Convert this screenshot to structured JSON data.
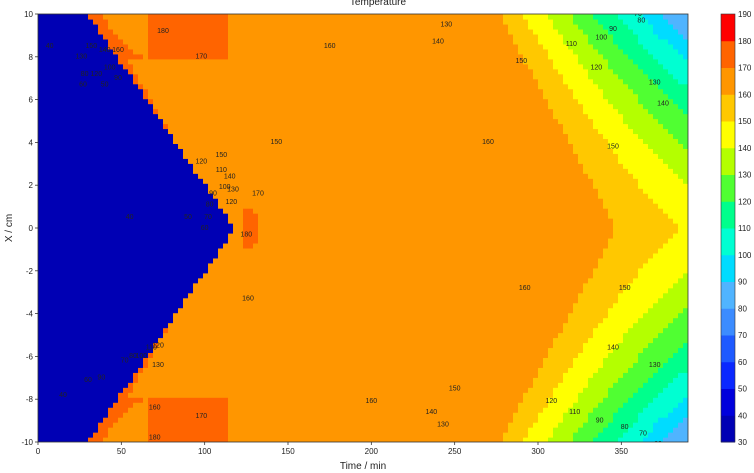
{
  "chart_data": {
    "type": "contour",
    "title": "Temperature",
    "xlabel": "Time / min",
    "ylabel": "X / cm",
    "xlim": [
      0,
      390
    ],
    "ylim": [
      -10,
      10
    ],
    "x_ticks": [
      0,
      50,
      100,
      150,
      200,
      250,
      300,
      350
    ],
    "y_ticks": [
      -10,
      -8,
      -6,
      -4,
      -2,
      0,
      2,
      4,
      6,
      8,
      10
    ],
    "colorbar": {
      "levels": [
        30,
        40,
        50,
        60,
        70,
        80,
        90,
        100,
        110,
        120,
        130,
        140,
        150,
        160,
        170,
        180,
        190
      ],
      "colors": [
        "#0000b4",
        "#0000dc",
        "#0a28ff",
        "#1e5aff",
        "#3c8cff",
        "#50b4ff",
        "#00dcff",
        "#00ffd2",
        "#00ff8c",
        "#50ff32",
        "#b4ff00",
        "#ffff00",
        "#ffc800",
        "#ff9600",
        "#ff6400",
        "#ff0000"
      ]
    },
    "contour_labels": [
      {
        "text": "180",
        "x": 75,
        "y": 9.2
      },
      {
        "text": "170",
        "x": 98,
        "y": 8.0
      },
      {
        "text": "160",
        "x": 175,
        "y": 8.5
      },
      {
        "text": "150",
        "x": 290,
        "y": 7.8
      },
      {
        "text": "140",
        "x": 240,
        "y": 8.7
      },
      {
        "text": "130",
        "x": 245,
        "y": 9.5
      },
      {
        "text": "120",
        "x": 335,
        "y": 7.5
      },
      {
        "text": "110",
        "x": 320,
        "y": 8.6
      },
      {
        "text": "100",
        "x": 338,
        "y": 8.9
      },
      {
        "text": "90",
        "x": 345,
        "y": 9.3
      },
      {
        "text": "80",
        "x": 362,
        "y": 9.7
      },
      {
        "text": "70",
        "x": 360,
        "y": 10.0
      },
      {
        "text": "60",
        "x": 380,
        "y": 10.3
      },
      {
        "text": "150",
        "x": 143,
        "y": 4.0
      },
      {
        "text": "160",
        "x": 270,
        "y": 4.0
      },
      {
        "text": "150",
        "x": 345,
        "y": 3.8
      },
      {
        "text": "140",
        "x": 375,
        "y": 5.8
      },
      {
        "text": "130",
        "x": 370,
        "y": 6.8
      },
      {
        "text": "120",
        "x": 98,
        "y": 3.1
      },
      {
        "text": "150",
        "x": 110,
        "y": 3.4
      },
      {
        "text": "110",
        "x": 110,
        "y": 2.7
      },
      {
        "text": "140",
        "x": 115,
        "y": 2.4
      },
      {
        "text": "100",
        "x": 112,
        "y": 1.9
      },
      {
        "text": "90",
        "x": 105,
        "y": 1.6
      },
      {
        "text": "130",
        "x": 117,
        "y": 1.8
      },
      {
        "text": "80",
        "x": 103,
        "y": 1.1
      },
      {
        "text": "120",
        "x": 116,
        "y": 1.2
      },
      {
        "text": "170",
        "x": 132,
        "y": 1.6
      },
      {
        "text": "70",
        "x": 102,
        "y": 0.5
      },
      {
        "text": "60",
        "x": 100,
        "y": 0.0
      },
      {
        "text": "50",
        "x": 90,
        "y": 0.5
      },
      {
        "text": "40",
        "x": 55,
        "y": 0.5
      },
      {
        "text": "180",
        "x": 125,
        "y": -0.3
      },
      {
        "text": "160",
        "x": 126,
        "y": -3.3
      },
      {
        "text": "160",
        "x": 292,
        "y": -2.8
      },
      {
        "text": "150",
        "x": 352,
        "y": -2.8
      },
      {
        "text": "140",
        "x": 345,
        "y": -5.6
      },
      {
        "text": "130",
        "x": 370,
        "y": -6.4
      },
      {
        "text": "150",
        "x": 250,
        "y": -7.5
      },
      {
        "text": "160",
        "x": 200,
        "y": -8.1
      },
      {
        "text": "140",
        "x": 236,
        "y": -8.6
      },
      {
        "text": "130",
        "x": 243,
        "y": -9.2
      },
      {
        "text": "120",
        "x": 308,
        "y": -8.1
      },
      {
        "text": "110",
        "x": 322,
        "y": -8.6
      },
      {
        "text": "90",
        "x": 337,
        "y": -9.0
      },
      {
        "text": "80",
        "x": 352,
        "y": -9.3
      },
      {
        "text": "70",
        "x": 363,
        "y": -9.6
      },
      {
        "text": "60",
        "x": 372,
        "y": -10.1
      },
      {
        "text": "40",
        "x": 15,
        "y": -7.8
      },
      {
        "text": "70",
        "x": 52,
        "y": -6.2
      },
      {
        "text": "80",
        "x": 57,
        "y": -6.0
      },
      {
        "text": "90",
        "x": 38,
        "y": -7.0
      },
      {
        "text": "100",
        "x": 62,
        "y": -6.0
      },
      {
        "text": "110",
        "x": 68,
        "y": -5.6
      },
      {
        "text": "120",
        "x": 72,
        "y": -5.5
      },
      {
        "text": "130",
        "x": 72,
        "y": -6.4
      },
      {
        "text": "60",
        "x": 30,
        "y": -7.1
      },
      {
        "text": "160",
        "x": 70,
        "y": -8.4
      },
      {
        "text": "170",
        "x": 98,
        "y": -8.8
      },
      {
        "text": "180",
        "x": 70,
        "y": -9.8
      },
      {
        "text": "40",
        "x": 7,
        "y": 8.5
      },
      {
        "text": "150",
        "x": 32,
        "y": 8.5
      },
      {
        "text": "140",
        "x": 40,
        "y": 8.3
      },
      {
        "text": "160",
        "x": 48,
        "y": 8.3
      },
      {
        "text": "130",
        "x": 26,
        "y": 8.0
      },
      {
        "text": "100",
        "x": 43,
        "y": 7.5
      },
      {
        "text": "80",
        "x": 28,
        "y": 7.2
      },
      {
        "text": "60",
        "x": 27,
        "y": 6.7
      },
      {
        "text": "90",
        "x": 48,
        "y": 7.0
      },
      {
        "text": "50",
        "x": 40,
        "y": 6.7
      },
      {
        "text": "120",
        "x": 35,
        "y": 7.2
      }
    ]
  }
}
